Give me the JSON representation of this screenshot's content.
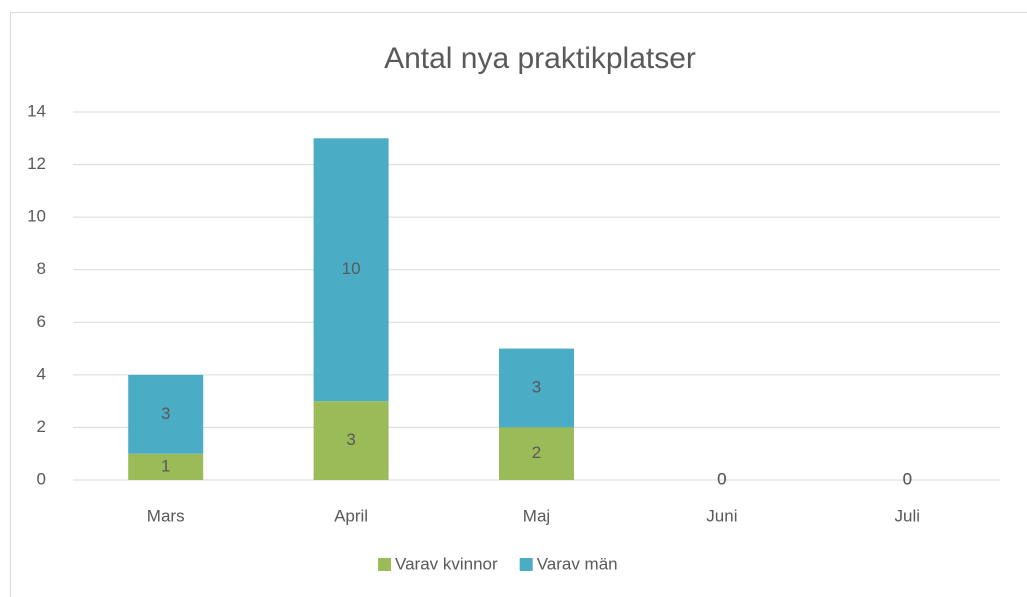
{
  "chart_data": {
    "type": "stacked_bar",
    "title": "Antal nya praktikplatser",
    "categories": [
      "Mars",
      "April",
      "Maj",
      "Juni",
      "Juli"
    ],
    "series": [
      {
        "name": "Varav kvinnor",
        "color": "#9bbb59",
        "values": [
          1,
          3,
          2,
          0,
          0
        ]
      },
      {
        "name": "Varav män",
        "color": "#4bacc6",
        "values": [
          3,
          10,
          3,
          0,
          0
        ]
      }
    ],
    "ylim": [
      0,
      14
    ],
    "yticks": [
      0,
      2,
      4,
      6,
      8,
      10,
      12,
      14
    ],
    "grid": true,
    "legend": "bottom"
  }
}
